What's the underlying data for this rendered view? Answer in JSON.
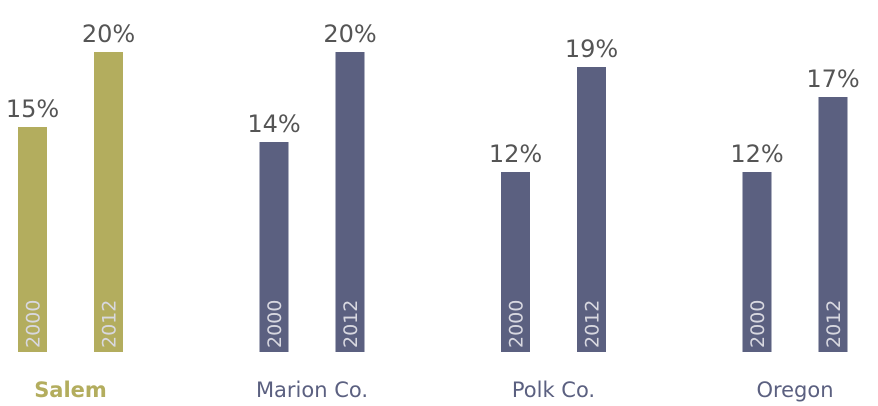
{
  "chart_data": {
    "type": "bar",
    "categories": [
      "Salem",
      "Marion Co.",
      "Polk Co.",
      "Oregon"
    ],
    "category_colors": [
      "#b3ad5e",
      "#5b6080",
      "#5b6080",
      "#5b6080"
    ],
    "series": [
      {
        "name": "2000",
        "values": [
          15,
          14,
          12,
          12
        ],
        "value_labels": [
          "15%",
          "14%",
          "12%",
          "12%"
        ]
      },
      {
        "name": "2012",
        "values": [
          20,
          20,
          19,
          17
        ],
        "value_labels": [
          "20%",
          "20%",
          "19%",
          "17%"
        ]
      }
    ],
    "ylim": [
      0,
      23
    ]
  }
}
